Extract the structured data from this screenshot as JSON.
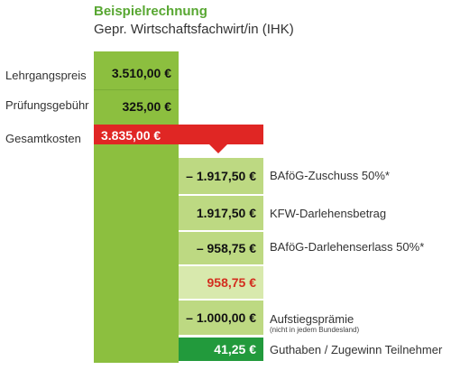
{
  "title": "Beispielrechnung",
  "subtitle": "Gepr. Wirtschaftsfachwirt/in  (IHK)",
  "colors": {
    "green_dark": "#8cbf3f",
    "green_light": "#bdd982",
    "green_pale": "#d8e9ad",
    "green_accent": "#229a3c",
    "red": "#e02624",
    "red_text": "#d32d1f"
  },
  "costs": [
    {
      "label": "Lehrgangspreis",
      "value": "3.510,00 €"
    },
    {
      "label": "Prüfungsgebühr",
      "value": "325,00 €"
    }
  ],
  "total": {
    "label": "Gesamtkosten",
    "value": "3.835,00 €"
  },
  "rows": [
    {
      "value": "– 1.917,50 €",
      "label": "BAföG-Zuschuss 50%*",
      "note": ""
    },
    {
      "value": "1.917,50 €",
      "label": "KFW-Darlehensbetrag",
      "note": ""
    },
    {
      "value": "– 958,75 €",
      "label": "BAföG-Darlehenserlass 50%*",
      "note": ""
    },
    {
      "value": "958,75 €",
      "label": "",
      "note": ""
    },
    {
      "value": "– 1.000,00 €",
      "label": "Aufstiegsprämie",
      "note": "(nicht in jedem Bundesland)"
    },
    {
      "value": "41,25 €",
      "label": "Guthaben / Zugewinn Teilnehmer",
      "note": ""
    }
  ],
  "chart_data": {
    "type": "bar",
    "title": "Beispielrechnung",
    "subtitle": "Gepr. Wirtschaftsfachwirt/in  (IHK)",
    "categories": [
      "Lehrgangspreis",
      "Prüfungsgebühr",
      "Gesamtkosten",
      "BAföG-Zuschuss 50%*",
      "KFW-Darlehensbetrag",
      "BAföG-Darlehenserlass 50%*",
      "",
      "Aufstiegsprämie",
      "Guthaben / Zugewinn Teilnehmer"
    ],
    "values": [
      3510.0,
      325.0,
      3835.0,
      -1917.5,
      1917.5,
      -958.75,
      958.75,
      -1000.0,
      41.25
    ],
    "currency": "EUR"
  }
}
